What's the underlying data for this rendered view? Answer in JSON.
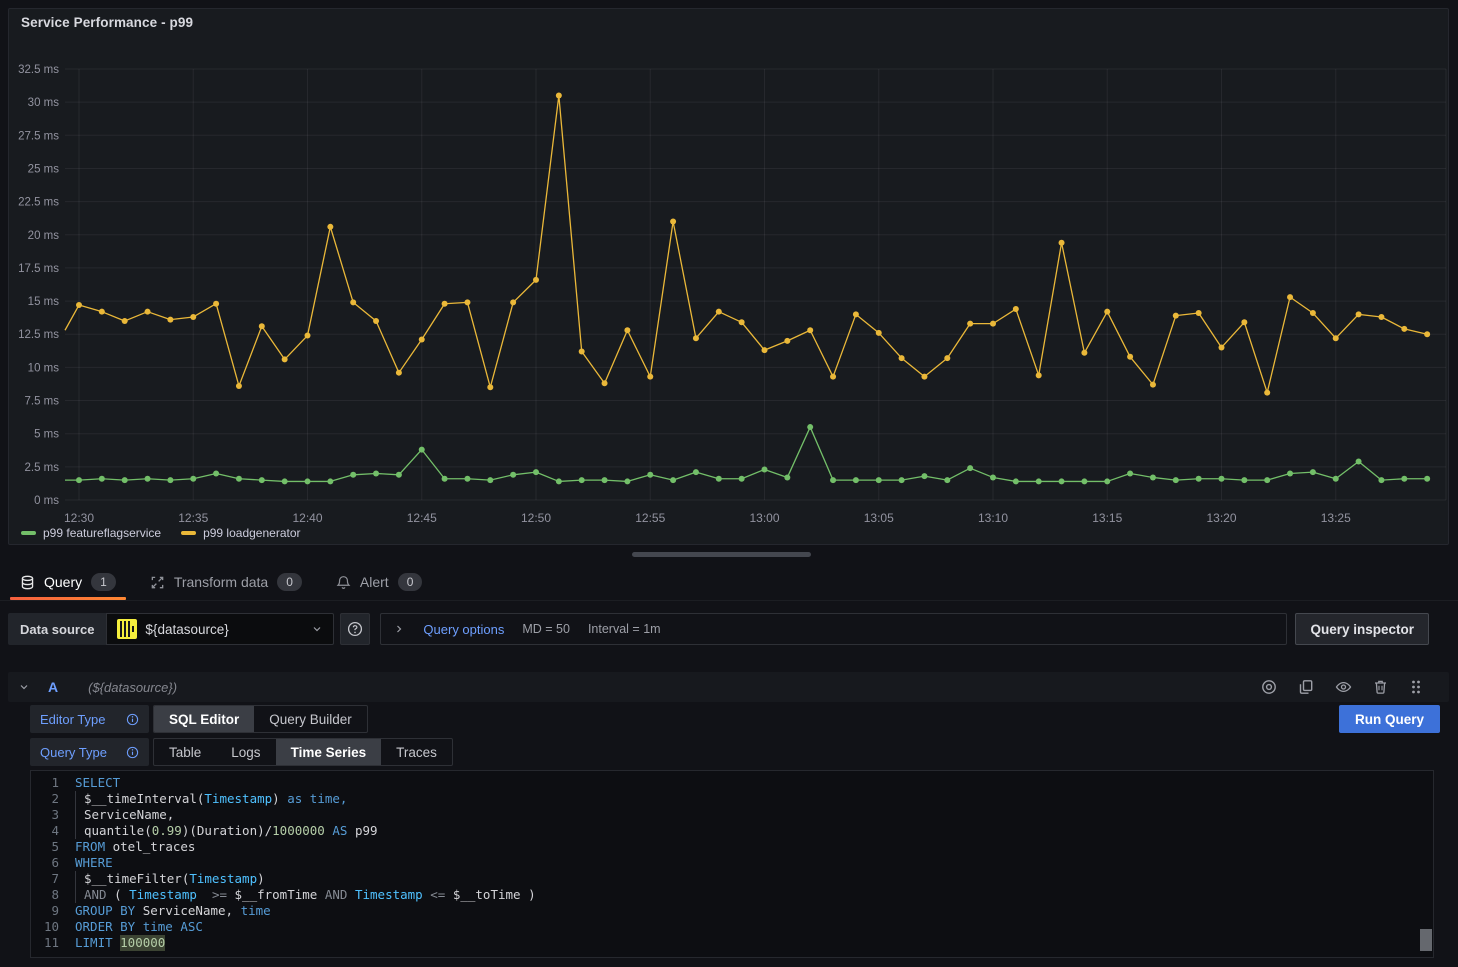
{
  "panel": {
    "title": "Service Performance - p99"
  },
  "chart_data": {
    "type": "line",
    "title": "Service Performance - p99",
    "unit": "ms",
    "grid": true,
    "legend_position": "bottom-left",
    "ylim": [
      0,
      34
    ],
    "y_ticks": [
      0,
      2.5,
      5,
      7.5,
      10,
      12.5,
      15,
      17.5,
      20,
      22.5,
      25,
      27.5,
      30,
      32.5
    ],
    "y_tick_suffix": " ms",
    "x_tick_every": 5,
    "x": [
      "12:30",
      "12:31",
      "12:32",
      "12:33",
      "12:34",
      "12:35",
      "12:36",
      "12:37",
      "12:38",
      "12:39",
      "12:40",
      "12:41",
      "12:42",
      "12:43",
      "12:44",
      "12:45",
      "12:46",
      "12:47",
      "12:48",
      "12:49",
      "12:50",
      "12:51",
      "12:52",
      "12:53",
      "12:54",
      "12:55",
      "12:56",
      "12:57",
      "12:58",
      "12:59",
      "13:00",
      "13:01",
      "13:02",
      "13:03",
      "13:04",
      "13:05",
      "13:06",
      "13:07",
      "13:08",
      "13:09",
      "13:10",
      "13:11",
      "13:12",
      "13:13",
      "13:14",
      "13:15",
      "13:16",
      "13:17",
      "13:18",
      "13:19",
      "13:20",
      "13:21",
      "13:22",
      "13:23",
      "13:24",
      "13:25",
      "13:26",
      "13:27",
      "13:28",
      "13:29"
    ],
    "series": [
      {
        "name": "p99 featureflagservice",
        "color": "#73bf69",
        "lead_in": 1.5,
        "values": [
          1.5,
          1.6,
          1.5,
          1.6,
          1.5,
          1.6,
          2.0,
          1.6,
          1.5,
          1.4,
          1.4,
          1.4,
          1.9,
          2.0,
          1.9,
          3.8,
          1.6,
          1.6,
          1.5,
          1.9,
          2.1,
          1.4,
          1.5,
          1.5,
          1.4,
          1.9,
          1.5,
          2.1,
          1.6,
          1.6,
          2.3,
          1.7,
          5.5,
          1.5,
          1.5,
          1.5,
          1.5,
          1.8,
          1.5,
          2.4,
          1.7,
          1.4,
          1.4,
          1.4,
          1.4,
          1.4,
          2.0,
          1.7,
          1.5,
          1.6,
          1.6,
          1.5,
          1.5,
          2.0,
          2.1,
          1.6,
          2.9,
          1.5,
          1.6,
          1.6
        ]
      },
      {
        "name": "p99 loadgenerator",
        "color": "#eab839",
        "lead_in": 12.8,
        "values": [
          14.7,
          14.2,
          13.5,
          14.2,
          13.6,
          13.8,
          14.8,
          8.6,
          13.1,
          10.6,
          12.4,
          20.6,
          14.9,
          13.5,
          9.6,
          12.1,
          14.8,
          14.9,
          8.5,
          14.9,
          16.6,
          30.5,
          11.2,
          8.8,
          12.8,
          9.3,
          21.0,
          12.2,
          14.2,
          13.4,
          11.3,
          12.0,
          12.8,
          9.3,
          14.0,
          12.6,
          10.7,
          9.3,
          10.7,
          13.3,
          13.3,
          14.4,
          9.4,
          19.4,
          11.1,
          14.2,
          10.8,
          8.7,
          13.9,
          14.1,
          11.5,
          13.4,
          8.1,
          15.3,
          14.1,
          12.2,
          14.0,
          13.8,
          12.9,
          12.5
        ]
      }
    ]
  },
  "tabs": {
    "query": {
      "label": "Query",
      "count": "1"
    },
    "transform": {
      "label": "Transform data",
      "count": "0"
    },
    "alert": {
      "label": "Alert",
      "count": "0"
    }
  },
  "toolbar": {
    "datasource_label": "Data source",
    "datasource_value": "${datasource}",
    "query_options_label": "Query options",
    "max_data_points": "MD = 50",
    "interval": "Interval = 1m",
    "query_inspector_label": "Query inspector"
  },
  "query_row": {
    "ref_id": "A",
    "datasource_hint": "(${datasource})"
  },
  "editor": {
    "editor_type_label": "Editor Type",
    "query_type_label": "Query Type",
    "editor_types": [
      "SQL Editor",
      "Query Builder"
    ],
    "query_types": [
      "Table",
      "Logs",
      "Time Series",
      "Traces"
    ],
    "selected_editor_type": "SQL Editor",
    "selected_query_type": "Time Series",
    "run_query_label": "Run Query"
  },
  "sql": {
    "lines": [
      {
        "n": 1,
        "tokens": [
          {
            "t": "SELECT",
            "c": "kw"
          }
        ]
      },
      {
        "n": 2,
        "indent": true,
        "tokens": [
          {
            "t": "$__timeInterval(",
            "c": "id"
          },
          {
            "t": "Timestamp",
            "c": "col"
          },
          {
            "t": ")",
            "c": "id"
          },
          {
            "t": " as time,",
            "c": "kw"
          }
        ]
      },
      {
        "n": 3,
        "indent": true,
        "tokens": [
          {
            "t": "ServiceName,",
            "c": "id"
          }
        ]
      },
      {
        "n": 4,
        "indent": true,
        "tokens": [
          {
            "t": "quantile(",
            "c": "id"
          },
          {
            "t": "0.99",
            "c": "num"
          },
          {
            "t": ")(Duration)/",
            "c": "id"
          },
          {
            "t": "1000000",
            "c": "num"
          },
          {
            "t": " AS",
            "c": "kw"
          },
          {
            "t": " p99",
            "c": "id"
          }
        ]
      },
      {
        "n": 5,
        "tokens": [
          {
            "t": "FROM",
            "c": "kw"
          },
          {
            "t": " otel_traces",
            "c": "id"
          }
        ]
      },
      {
        "n": 6,
        "tokens": [
          {
            "t": "WHERE",
            "c": "kw"
          }
        ]
      },
      {
        "n": 7,
        "indent": true,
        "tokens": [
          {
            "t": "$__timeFilter(",
            "c": "id"
          },
          {
            "t": "Timestamp",
            "c": "col"
          },
          {
            "t": ")",
            "c": "id"
          }
        ]
      },
      {
        "n": 8,
        "indent": true,
        "tokens": [
          {
            "t": "AND",
            "c": "op"
          },
          {
            "t": " ( ",
            "c": "id"
          },
          {
            "t": "Timestamp",
            "c": "col"
          },
          {
            "t": "  >= ",
            "c": "op"
          },
          {
            "t": "$__fromTime",
            "c": "id"
          },
          {
            "t": " AND ",
            "c": "op"
          },
          {
            "t": "Timestamp",
            "c": "col"
          },
          {
            "t": " <= ",
            "c": "op"
          },
          {
            "t": "$__toTime",
            "c": "id"
          },
          {
            "t": " )",
            "c": "id"
          }
        ]
      },
      {
        "n": 9,
        "tokens": [
          {
            "t": "GROUP BY",
            "c": "kw"
          },
          {
            "t": " ServiceName,",
            "c": "id"
          },
          {
            "t": " time",
            "c": "kw"
          }
        ]
      },
      {
        "n": 10,
        "tokens": [
          {
            "t": "ORDER BY time ASC",
            "c": "kw"
          }
        ]
      },
      {
        "n": 11,
        "tokens": [
          {
            "t": "LIMIT ",
            "c": "kw"
          },
          {
            "t": "100000",
            "c": "num hl"
          }
        ]
      }
    ]
  }
}
